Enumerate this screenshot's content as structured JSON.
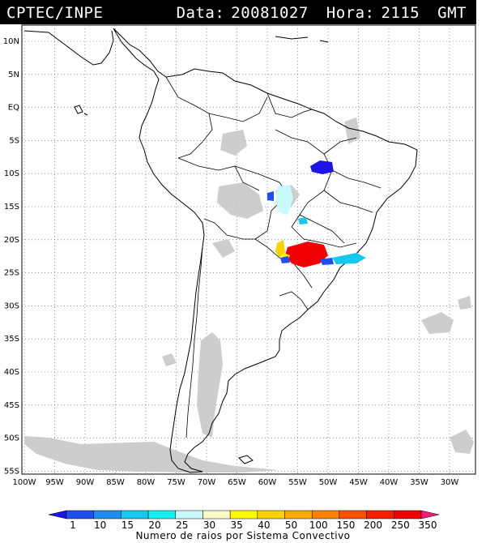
{
  "header": {
    "source": "CPTEC/INPE",
    "date_label": "Data:",
    "date_value": "20081027",
    "hour_label": "Hora:",
    "hour_value": "2115",
    "timezone": "GMT"
  },
  "map": {
    "lat_labels": [
      "10N",
      "5N",
      "EQ",
      "5S",
      "10S",
      "15S",
      "20S",
      "25S",
      "30S",
      "35S",
      "40S",
      "45S",
      "50S",
      "55S"
    ],
    "lon_labels": [
      "100W",
      "95W",
      "90W",
      "85W",
      "80W",
      "75W",
      "70W",
      "65W",
      "60W",
      "55W",
      "50W",
      "45W",
      "40W",
      "35W",
      "30W"
    ]
  },
  "colorbar": {
    "ticks": [
      "1",
      "10",
      "15",
      "20",
      "25",
      "30",
      "35",
      "40",
      "50",
      "100",
      "150",
      "200",
      "250",
      "350"
    ],
    "colors": [
      "#1e14e6",
      "#1e50f0",
      "#1e8cf0",
      "#14c8f0",
      "#14f0f0",
      "#c8fafa",
      "#fafac8",
      "#fafa00",
      "#fad200",
      "#faaa00",
      "#fa8200",
      "#fa5000",
      "#fa1e00",
      "#f00000",
      "#f01e78"
    ],
    "caption": "Numero de raios por Sistema Convectivo"
  }
}
